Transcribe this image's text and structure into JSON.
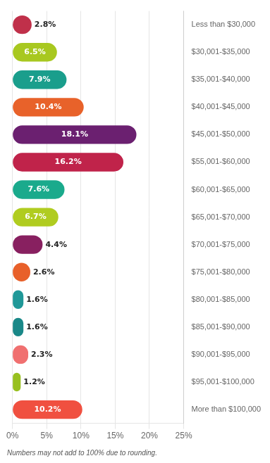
{
  "chart_data": {
    "type": "bar",
    "orientation": "horizontal",
    "categories": [
      "Less than $30,000",
      "$30,001-$35,000",
      "$35,001-$40,000",
      "$40,001-$45,000",
      "$45,001-$50,000",
      "$55,001-$60,000",
      "$60,001-$65,000",
      "$65,001-$70,000",
      "$70,001-$75,000",
      "$75,001-$80,000",
      "$80,001-$85,000",
      "$85,001-$90,000",
      "$90,001-$95,000",
      "$95,001-$100,000",
      "More than $100,000"
    ],
    "values": [
      2.8,
      6.5,
      7.9,
      10.4,
      18.1,
      16.2,
      7.6,
      6.7,
      4.4,
      2.6,
      1.6,
      1.6,
      2.3,
      1.2,
      10.2
    ],
    "value_labels": [
      "2.8%",
      "6.5%",
      "7.9%",
      "10.4%",
      "18.1%",
      "16.2%",
      "7.6%",
      "6.7%",
      "4.4%",
      "2.6%",
      "1.6%",
      "1.6%",
      "2.3%",
      "1.2%",
      "10.2%"
    ],
    "colors": [
      "#c0304a",
      "#a8c820",
      "#1a9e8c",
      "#e8622a",
      "#6b2070",
      "#c0234a",
      "#1aaa8c",
      "#b0cc20",
      "#882060",
      "#e8602a",
      "#209898",
      "#1a8888",
      "#f07070",
      "#98c020",
      "#f05040"
    ],
    "data_labels": true,
    "xlim": [
      0,
      25
    ],
    "xticks": [
      {
        "value": 0,
        "label": "0%"
      },
      {
        "value": 5,
        "label": "5%"
      },
      {
        "value": 10,
        "label": "10%"
      },
      {
        "value": 15,
        "label": "15%"
      },
      {
        "value": 20,
        "label": "20%"
      },
      {
        "value": 25,
        "label": "25%"
      }
    ],
    "grid": true,
    "annotations": [
      "Numbers may not add to 100% due to rounding."
    ]
  }
}
